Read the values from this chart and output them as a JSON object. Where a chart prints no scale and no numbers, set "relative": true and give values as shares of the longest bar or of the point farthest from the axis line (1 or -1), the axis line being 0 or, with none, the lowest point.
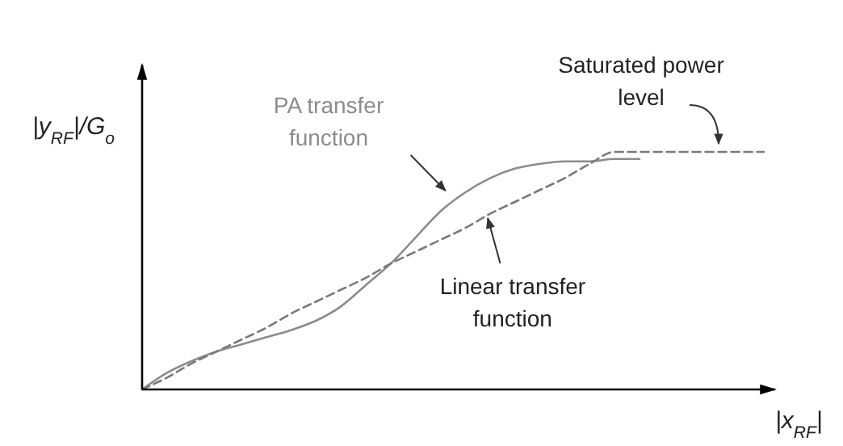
{
  "chart_data": {
    "type": "line",
    "relative": true,
    "xlabel": "|x$_{RF}$|",
    "ylabel": "|y$_{RF}$|/G$_{o}$",
    "categories": [
      null,
      null,
      null,
      null,
      null,
      null,
      null,
      null,
      null,
      null,
      null,
      null,
      null,
      null,
      null,
      null,
      null,
      null,
      null,
      null,
      null,
      null,
      null,
      null,
      null,
      null
    ],
    "series": [
      {
        "name": "PA transfer function",
        "color": "#8c8c8c",
        "line_style": "solid",
        "values": [
          0,
          0.07,
          0.12,
          0.16,
          0.19,
          0.22,
          0.25,
          0.29,
          0.35,
          0.44,
          0.53,
          0.64,
          0.75,
          0.83,
          0.89,
          0.93,
          0.95,
          0.96,
          0.96,
          0.97,
          0.97,
          null,
          null,
          null,
          null,
          null
        ]
      },
      {
        "name": "Linear transfer function",
        "color": "#7a7a7a",
        "line_style": "dashed",
        "values": [
          0,
          0.05,
          0.11,
          0.16,
          0.21,
          0.26,
          0.32,
          0.37,
          0.42,
          0.47,
          0.53,
          0.58,
          0.63,
          0.68,
          0.74,
          0.79,
          0.84,
          0.89,
          0.95,
          1,
          1,
          1,
          1,
          1,
          1,
          1
        ]
      }
    ],
    "annotations": [
      "Saturated power level"
    ]
  }
}
